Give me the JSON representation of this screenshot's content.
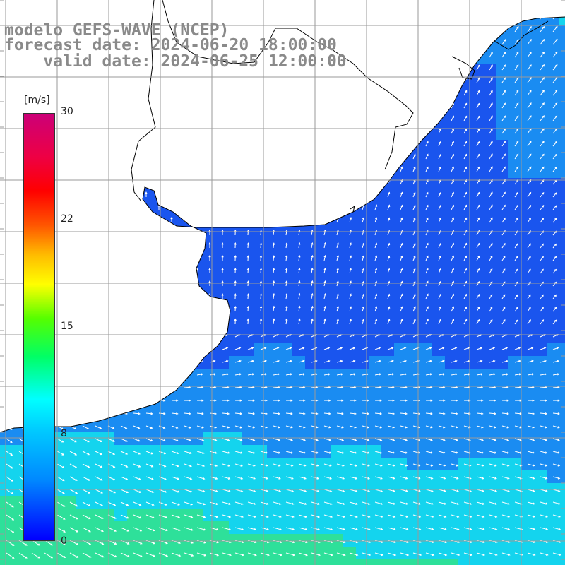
{
  "title": {
    "line1": "modelo GEFS-WAVE (NCEP)",
    "line2": "forecast date: 2024-06-20 18:00:00",
    "line3": "    valid date: 2024-06-25 12:00:00"
  },
  "legend": {
    "unit": "[m/s]",
    "ticks": [
      {
        "value": 30,
        "label": "30"
      },
      {
        "value": 22,
        "label": "22"
      },
      {
        "value": 15,
        "label": "15"
      },
      {
        "value": 8,
        "label": "8"
      },
      {
        "value": 0,
        "label": "0"
      }
    ],
    "colors": [
      "#0000ff",
      "#0088ff",
      "#00ccff",
      "#00ffff",
      "#00ff66",
      "#55ff00",
      "#ffff00",
      "#ffbb00",
      "#ff5500",
      "#ff0000",
      "#ee0044",
      "#cc0077"
    ]
  },
  "map": {
    "ocean_colors": {
      "calm": "#1a55ee",
      "mid": "#1a8cf2",
      "high": "#14d4ee",
      "peak": "#2ee09a"
    },
    "land_color": "#ffffff",
    "grid_color": "#9a9a9a",
    "coast_color": "#000000",
    "arrow_color": "#ffffff"
  }
}
